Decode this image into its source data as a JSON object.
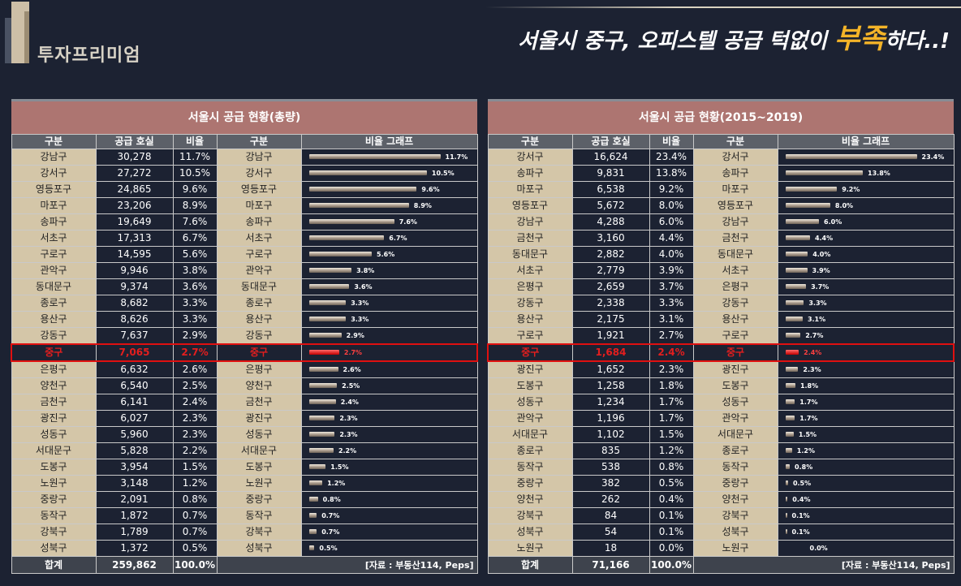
{
  "brand": "투자프리미엄",
  "headline": {
    "before": "서울시 중구, 오피스텔 공급 턱없이 ",
    "highlight": "부족",
    "after": "하다..!"
  },
  "columns": [
    "구분",
    "공급 호실",
    "비율",
    "구분",
    "비율 그래프"
  ],
  "highlight_color": "#e01010",
  "bar_color": "#c8bba8",
  "chart_data": [
    {
      "type": "table",
      "title": "서울시 공급 현황(총량)",
      "highlight": "중구",
      "max_pct": 11.7,
      "rows": [
        {
          "name": "강남구",
          "units": "30,278",
          "pct": 11.7
        },
        {
          "name": "강서구",
          "units": "27,272",
          "pct": 10.5
        },
        {
          "name": "영등포구",
          "units": "24,865",
          "pct": 9.6
        },
        {
          "name": "마포구",
          "units": "23,206",
          "pct": 8.9
        },
        {
          "name": "송파구",
          "units": "19,649",
          "pct": 7.6
        },
        {
          "name": "서초구",
          "units": "17,313",
          "pct": 6.7
        },
        {
          "name": "구로구",
          "units": "14,595",
          "pct": 5.6
        },
        {
          "name": "관악구",
          "units": "9,946",
          "pct": 3.8
        },
        {
          "name": "동대문구",
          "units": "9,374",
          "pct": 3.6
        },
        {
          "name": "종로구",
          "units": "8,682",
          "pct": 3.3
        },
        {
          "name": "용산구",
          "units": "8,626",
          "pct": 3.3
        },
        {
          "name": "강동구",
          "units": "7,637",
          "pct": 2.9
        },
        {
          "name": "중구",
          "units": "7,065",
          "pct": 2.7
        },
        {
          "name": "은평구",
          "units": "6,632",
          "pct": 2.6
        },
        {
          "name": "양천구",
          "units": "6,540",
          "pct": 2.5
        },
        {
          "name": "금천구",
          "units": "6,141",
          "pct": 2.4
        },
        {
          "name": "광진구",
          "units": "6,027",
          "pct": 2.3
        },
        {
          "name": "성동구",
          "units": "5,960",
          "pct": 2.3
        },
        {
          "name": "서대문구",
          "units": "5,828",
          "pct": 2.2
        },
        {
          "name": "도봉구",
          "units": "3,954",
          "pct": 1.5
        },
        {
          "name": "노원구",
          "units": "3,148",
          "pct": 1.2
        },
        {
          "name": "중랑구",
          "units": "2,091",
          "pct": 0.8
        },
        {
          "name": "동작구",
          "units": "1,872",
          "pct": 0.7
        },
        {
          "name": "강북구",
          "units": "1,789",
          "pct": 0.7
        },
        {
          "name": "성북구",
          "units": "1,372",
          "pct": 0.5
        }
      ],
      "total": {
        "label": "합계",
        "units": "259,862",
        "pct": "100.0%"
      },
      "source": "[자료 : 부동산114, Peps]"
    },
    {
      "type": "table",
      "title": "서울시 공급 현황(2015~2019)",
      "highlight": "중구",
      "max_pct": 23.4,
      "rows": [
        {
          "name": "강서구",
          "units": "16,624",
          "pct": 23.4
        },
        {
          "name": "송파구",
          "units": "9,831",
          "pct": 13.8
        },
        {
          "name": "마포구",
          "units": "6,538",
          "pct": 9.2
        },
        {
          "name": "영등포구",
          "units": "5,672",
          "pct": 8.0
        },
        {
          "name": "강남구",
          "units": "4,288",
          "pct": 6.0
        },
        {
          "name": "금천구",
          "units": "3,160",
          "pct": 4.4
        },
        {
          "name": "동대문구",
          "units": "2,882",
          "pct": 4.0
        },
        {
          "name": "서초구",
          "units": "2,779",
          "pct": 3.9
        },
        {
          "name": "은평구",
          "units": "2,659",
          "pct": 3.7
        },
        {
          "name": "강동구",
          "units": "2,338",
          "pct": 3.3
        },
        {
          "name": "용산구",
          "units": "2,175",
          "pct": 3.1
        },
        {
          "name": "구로구",
          "units": "1,921",
          "pct": 2.7
        },
        {
          "name": "중구",
          "units": "1,684",
          "pct": 2.4
        },
        {
          "name": "광진구",
          "units": "1,652",
          "pct": 2.3
        },
        {
          "name": "도봉구",
          "units": "1,258",
          "pct": 1.8
        },
        {
          "name": "성동구",
          "units": "1,234",
          "pct": 1.7
        },
        {
          "name": "관악구",
          "units": "1,196",
          "pct": 1.7
        },
        {
          "name": "서대문구",
          "units": "1,102",
          "pct": 1.5
        },
        {
          "name": "종로구",
          "units": "835",
          "pct": 1.2
        },
        {
          "name": "동작구",
          "units": "538",
          "pct": 0.8
        },
        {
          "name": "중랑구",
          "units": "382",
          "pct": 0.5
        },
        {
          "name": "양천구",
          "units": "262",
          "pct": 0.4
        },
        {
          "name": "강북구",
          "units": "84",
          "pct": 0.1
        },
        {
          "name": "성북구",
          "units": "54",
          "pct": 0.1
        },
        {
          "name": "노원구",
          "units": "18",
          "pct": 0.0
        }
      ],
      "total": {
        "label": "합계",
        "units": "71,166",
        "pct": "100.0%"
      },
      "source": "[자료 : 부동산114, Peps]"
    }
  ]
}
